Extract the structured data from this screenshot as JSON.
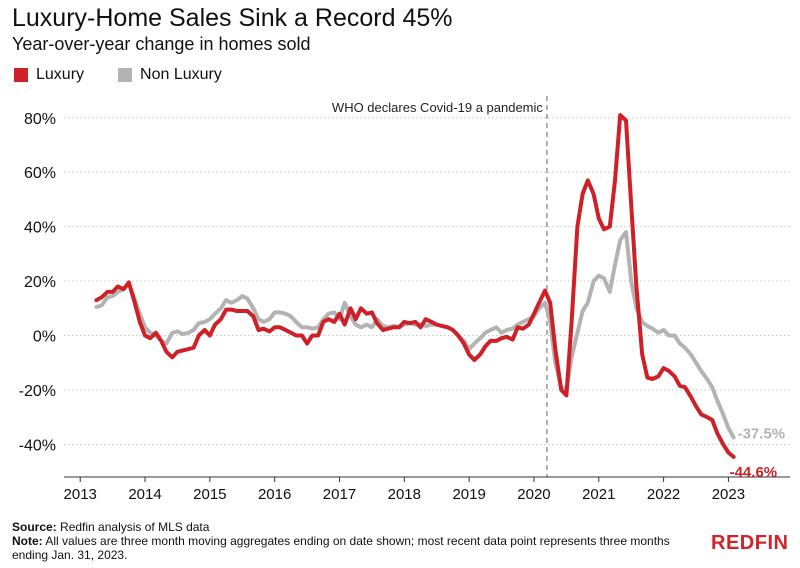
{
  "header": {
    "title": "Luxury-Home Sales Sink a Record 45%",
    "subtitle": "Year-over-year change in homes sold"
  },
  "colors": {
    "luxury": "#cf2027",
    "non_luxury": "#b3b3b3",
    "brand": "#d1232a"
  },
  "footer": {
    "source_label": "Source:",
    "source_text": " Redfin analysis of MLS data",
    "note_label": "Note:",
    "note_text": " All values are three month moving aggregates ending on date shown; most recent data point represents three months ending Jan. 31, 2023."
  },
  "logo": "REDFIN",
  "chart_data": {
    "type": "line",
    "title": "Luxury-Home Sales Sink a Record 45%",
    "subtitle": "Year-over-year change in homes sold",
    "xlabel": "",
    "ylabel": "",
    "xlim": [
      2012.75,
      2023.95
    ],
    "ylim": [
      -52,
      88
    ],
    "x_ticks": [
      2013,
      2014,
      2015,
      2016,
      2017,
      2018,
      2019,
      2020,
      2021,
      2022,
      2023
    ],
    "x_tick_labels": [
      "2013",
      "2014",
      "2015",
      "2016",
      "2017",
      "2018",
      "2019",
      "2020",
      "2021",
      "2022",
      "2023"
    ],
    "y_ticks": [
      -40,
      -20,
      0,
      20,
      40,
      60,
      80
    ],
    "y_tick_labels": [
      "-40%",
      "-20%",
      "0%",
      "20%",
      "40%",
      "60%",
      "80%"
    ],
    "grid": "horizontal dotted",
    "legend_position": "top-left",
    "annotation": {
      "x": 2020.2,
      "text": "WHO declares Covid-19 a pandemic"
    },
    "end_labels": {
      "luxury": "-44.6%",
      "non_luxury": "-37.5%"
    },
    "series": [
      {
        "name": "Luxury",
        "key": "luxury",
        "points": [
          [
            2013.25,
            13
          ],
          [
            2013.33,
            14
          ],
          [
            2013.42,
            16
          ],
          [
            2013.5,
            16
          ],
          [
            2013.58,
            18
          ],
          [
            2013.67,
            17
          ],
          [
            2013.75,
            19.5
          ],
          [
            2013.83,
            13
          ],
          [
            2013.92,
            5
          ],
          [
            2014.0,
            0
          ],
          [
            2014.08,
            -1
          ],
          [
            2014.17,
            1
          ],
          [
            2014.25,
            -2
          ],
          [
            2014.33,
            -6
          ],
          [
            2014.42,
            -8
          ],
          [
            2014.5,
            -6
          ],
          [
            2014.58,
            -5.5
          ],
          [
            2014.67,
            -5
          ],
          [
            2014.75,
            -4.5
          ],
          [
            2014.83,
            0
          ],
          [
            2014.92,
            2
          ],
          [
            2015.0,
            0
          ],
          [
            2015.08,
            4
          ],
          [
            2015.17,
            6
          ],
          [
            2015.25,
            9.5
          ],
          [
            2015.33,
            9.5
          ],
          [
            2015.42,
            9
          ],
          [
            2015.5,
            9
          ],
          [
            2015.58,
            9
          ],
          [
            2015.67,
            7
          ],
          [
            2015.75,
            2
          ],
          [
            2015.83,
            2.5
          ],
          [
            2015.92,
            1.5
          ],
          [
            2016.0,
            3
          ],
          [
            2016.08,
            3
          ],
          [
            2016.17,
            2
          ],
          [
            2016.25,
            1
          ],
          [
            2016.33,
            0
          ],
          [
            2016.42,
            0
          ],
          [
            2016.5,
            -3
          ],
          [
            2016.58,
            0
          ],
          [
            2016.67,
            0
          ],
          [
            2016.75,
            5
          ],
          [
            2016.83,
            6
          ],
          [
            2016.92,
            5
          ],
          [
            2017.0,
            8
          ],
          [
            2017.08,
            4
          ],
          [
            2017.17,
            10
          ],
          [
            2017.25,
            6
          ],
          [
            2017.33,
            10
          ],
          [
            2017.42,
            8
          ],
          [
            2017.5,
            8.5
          ],
          [
            2017.58,
            4.5
          ],
          [
            2017.67,
            2
          ],
          [
            2017.75,
            2.5
          ],
          [
            2017.83,
            3
          ],
          [
            2017.92,
            3
          ],
          [
            2018.0,
            5
          ],
          [
            2018.08,
            4.5
          ],
          [
            2018.17,
            5
          ],
          [
            2018.25,
            3
          ],
          [
            2018.33,
            6
          ],
          [
            2018.42,
            5
          ],
          [
            2018.5,
            4
          ],
          [
            2018.58,
            3.5
          ],
          [
            2018.67,
            3
          ],
          [
            2018.75,
            2
          ],
          [
            2018.83,
            0
          ],
          [
            2018.92,
            -3
          ],
          [
            2019.0,
            -7
          ],
          [
            2019.08,
            -9
          ],
          [
            2019.17,
            -7
          ],
          [
            2019.25,
            -4
          ],
          [
            2019.33,
            -2
          ],
          [
            2019.42,
            -2
          ],
          [
            2019.5,
            -1
          ],
          [
            2019.58,
            -0.5
          ],
          [
            2019.67,
            -1.5
          ],
          [
            2019.75,
            3
          ],
          [
            2019.83,
            2.5
          ],
          [
            2019.92,
            4
          ],
          [
            2020.0,
            8
          ],
          [
            2020.08,
            12
          ],
          [
            2020.17,
            16.5
          ],
          [
            2020.25,
            12
          ],
          [
            2020.33,
            -5
          ],
          [
            2020.42,
            -20
          ],
          [
            2020.5,
            -22
          ],
          [
            2020.58,
            5
          ],
          [
            2020.67,
            40
          ],
          [
            2020.75,
            52
          ],
          [
            2020.83,
            57
          ],
          [
            2020.92,
            52
          ],
          [
            2021.0,
            43
          ],
          [
            2021.08,
            39
          ],
          [
            2021.17,
            40
          ],
          [
            2021.25,
            57
          ],
          [
            2021.33,
            81
          ],
          [
            2021.42,
            79
          ],
          [
            2021.5,
            48
          ],
          [
            2021.58,
            18
          ],
          [
            2021.67,
            -7
          ],
          [
            2021.75,
            -15.5
          ],
          [
            2021.83,
            -16
          ],
          [
            2021.92,
            -15
          ],
          [
            2022.0,
            -12
          ],
          [
            2022.08,
            -13
          ],
          [
            2022.17,
            -15
          ],
          [
            2022.25,
            -18.5
          ],
          [
            2022.33,
            -19
          ],
          [
            2022.42,
            -22.5
          ],
          [
            2022.5,
            -26
          ],
          [
            2022.58,
            -29
          ],
          [
            2022.67,
            -30
          ],
          [
            2022.75,
            -31
          ],
          [
            2022.83,
            -36
          ],
          [
            2022.92,
            -40
          ],
          [
            2023.0,
            -43
          ],
          [
            2023.08,
            -44.6
          ]
        ]
      },
      {
        "name": "Non Luxury",
        "key": "non_luxury",
        "points": [
          [
            2013.25,
            10.5
          ],
          [
            2013.33,
            11
          ],
          [
            2013.42,
            14
          ],
          [
            2013.5,
            14.5
          ],
          [
            2013.58,
            16
          ],
          [
            2013.67,
            17
          ],
          [
            2013.75,
            19
          ],
          [
            2013.83,
            14
          ],
          [
            2013.92,
            8
          ],
          [
            2014.0,
            3
          ],
          [
            2014.08,
            1
          ],
          [
            2014.17,
            0
          ],
          [
            2014.25,
            -2
          ],
          [
            2014.33,
            -3
          ],
          [
            2014.42,
            1
          ],
          [
            2014.5,
            1.5
          ],
          [
            2014.58,
            0.5
          ],
          [
            2014.67,
            1
          ],
          [
            2014.75,
            2
          ],
          [
            2014.83,
            4.5
          ],
          [
            2014.92,
            5
          ],
          [
            2015.0,
            6
          ],
          [
            2015.08,
            8
          ],
          [
            2015.17,
            10
          ],
          [
            2015.25,
            13
          ],
          [
            2015.33,
            12
          ],
          [
            2015.42,
            13
          ],
          [
            2015.5,
            14.5
          ],
          [
            2015.58,
            13.5
          ],
          [
            2015.67,
            10
          ],
          [
            2015.75,
            6
          ],
          [
            2015.83,
            5
          ],
          [
            2015.92,
            6
          ],
          [
            2016.0,
            8.5
          ],
          [
            2016.08,
            8.5
          ],
          [
            2016.17,
            8
          ],
          [
            2016.25,
            7
          ],
          [
            2016.33,
            5
          ],
          [
            2016.42,
            3
          ],
          [
            2016.5,
            3
          ],
          [
            2016.58,
            2.5
          ],
          [
            2016.67,
            3
          ],
          [
            2016.75,
            6
          ],
          [
            2016.83,
            8
          ],
          [
            2016.92,
            8.5
          ],
          [
            2017.0,
            6
          ],
          [
            2017.08,
            12
          ],
          [
            2017.17,
            7
          ],
          [
            2017.25,
            4
          ],
          [
            2017.33,
            3
          ],
          [
            2017.42,
            4
          ],
          [
            2017.5,
            3
          ],
          [
            2017.58,
            6
          ],
          [
            2017.67,
            3.5
          ],
          [
            2017.75,
            3
          ],
          [
            2017.83,
            3.5
          ],
          [
            2017.92,
            3
          ],
          [
            2018.0,
            4
          ],
          [
            2018.08,
            4.5
          ],
          [
            2018.17,
            4
          ],
          [
            2018.25,
            4
          ],
          [
            2018.33,
            3.5
          ],
          [
            2018.42,
            4
          ],
          [
            2018.5,
            4
          ],
          [
            2018.58,
            3.5
          ],
          [
            2018.67,
            3
          ],
          [
            2018.75,
            2
          ],
          [
            2018.83,
            0
          ],
          [
            2018.92,
            -2
          ],
          [
            2019.0,
            -5
          ],
          [
            2019.08,
            -3
          ],
          [
            2019.17,
            -1
          ],
          [
            2019.25,
            1
          ],
          [
            2019.33,
            2
          ],
          [
            2019.42,
            3
          ],
          [
            2019.5,
            1
          ],
          [
            2019.58,
            2
          ],
          [
            2019.67,
            2.5
          ],
          [
            2019.75,
            4
          ],
          [
            2019.83,
            5
          ],
          [
            2019.92,
            6
          ],
          [
            2020.0,
            7
          ],
          [
            2020.08,
            10
          ],
          [
            2020.17,
            12
          ],
          [
            2020.25,
            5
          ],
          [
            2020.33,
            -10
          ],
          [
            2020.42,
            -19
          ],
          [
            2020.5,
            -20
          ],
          [
            2020.58,
            -8
          ],
          [
            2020.67,
            1
          ],
          [
            2020.75,
            9
          ],
          [
            2020.83,
            12
          ],
          [
            2020.92,
            20
          ],
          [
            2021.0,
            22
          ],
          [
            2021.08,
            21
          ],
          [
            2021.17,
            16
          ],
          [
            2021.25,
            26
          ],
          [
            2021.33,
            35
          ],
          [
            2021.42,
            38
          ],
          [
            2021.5,
            20
          ],
          [
            2021.58,
            10
          ],
          [
            2021.67,
            5
          ],
          [
            2021.75,
            3.5
          ],
          [
            2021.83,
            2.5
          ],
          [
            2021.92,
            1
          ],
          [
            2022.0,
            2
          ],
          [
            2022.08,
            0
          ],
          [
            2022.17,
            0
          ],
          [
            2022.25,
            -3
          ],
          [
            2022.33,
            -4.5
          ],
          [
            2022.42,
            -7
          ],
          [
            2022.5,
            -10
          ],
          [
            2022.58,
            -13
          ],
          [
            2022.67,
            -16
          ],
          [
            2022.75,
            -19
          ],
          [
            2022.83,
            -24
          ],
          [
            2022.92,
            -29
          ],
          [
            2023.0,
            -34
          ],
          [
            2023.08,
            -37.5
          ]
        ]
      }
    ]
  }
}
